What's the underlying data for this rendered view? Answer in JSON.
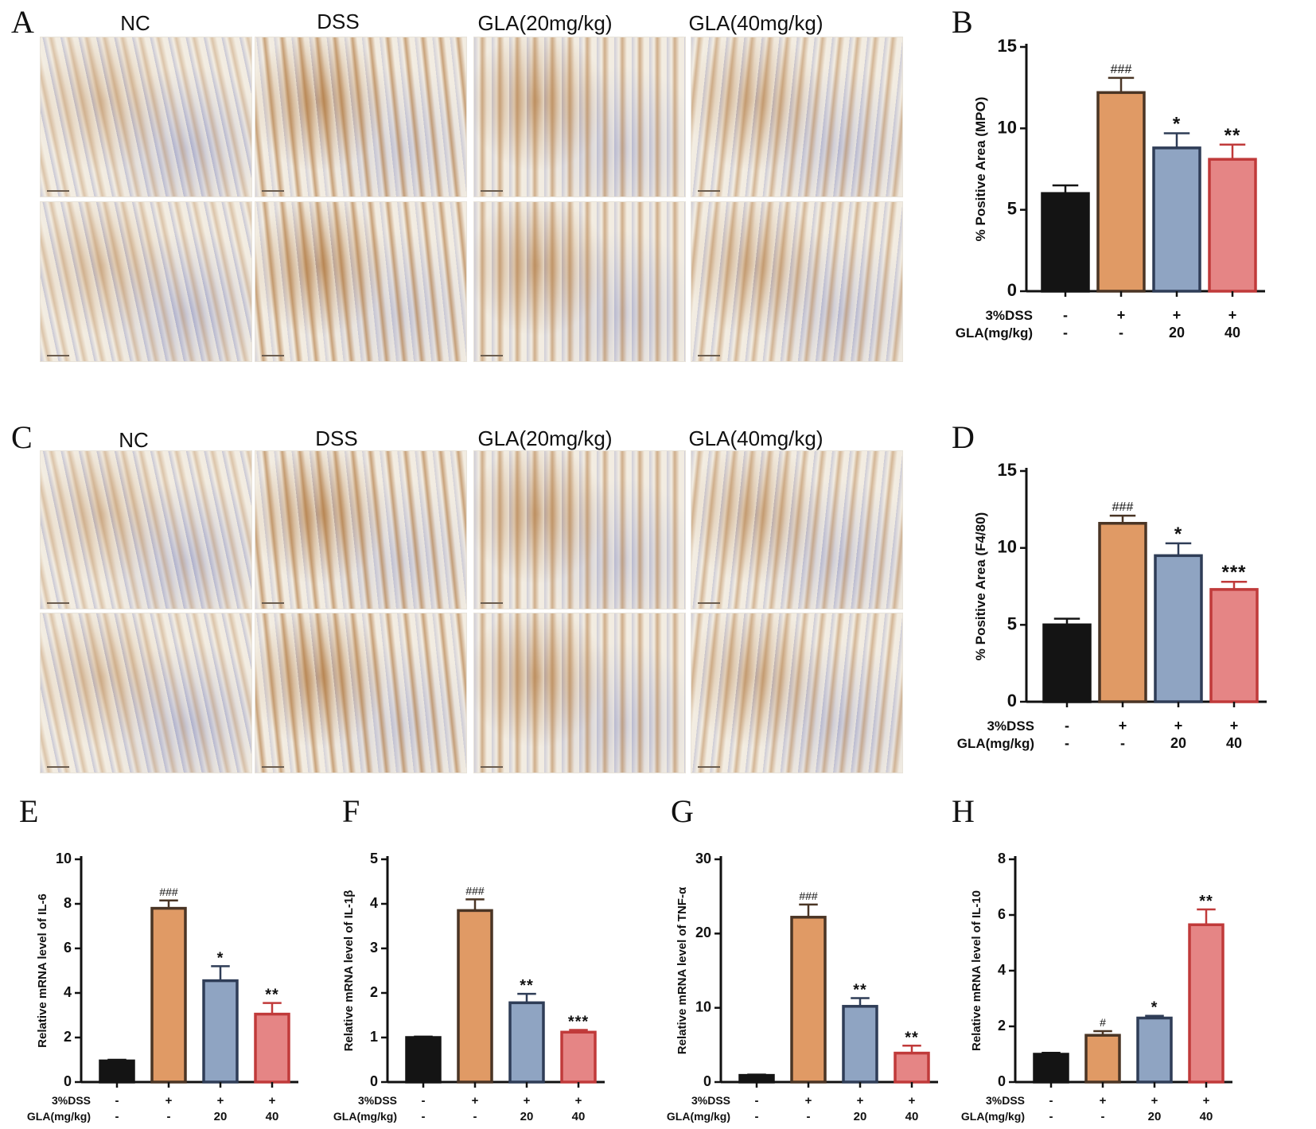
{
  "panels": {
    "A": {
      "letter": "A",
      "columns": [
        "NC",
        "DSS",
        "GLA(20mg/kg)",
        "GLA(40mg/kg)"
      ],
      "stain": "brown"
    },
    "C": {
      "letter": "C",
      "columns": [
        "NC",
        "DSS",
        "GLA(20mg/kg)",
        "GLA(40mg/kg)"
      ],
      "stain": "brown"
    }
  },
  "colors": {
    "NC": "#141414",
    "DSS": "#e09a65",
    "GLA20": "#8fa4c2",
    "GLA40": "#e58585"
  },
  "chart_data": [
    {
      "id": "B",
      "letter": "B",
      "type": "bar",
      "ylabel": "% Positive Area (MPO)",
      "ylim": [
        0,
        15
      ],
      "yticks": [
        0,
        5,
        10,
        15
      ],
      "values": [
        6.0,
        12.2,
        8.8,
        8.1
      ],
      "errors": [
        0.5,
        0.9,
        0.9,
        0.9
      ],
      "annotations": [
        "",
        "###",
        "*",
        "**"
      ],
      "rows": [
        {
          "label": "3%DSS",
          "values": [
            "-",
            "+",
            "+",
            "+"
          ]
        },
        {
          "label": "GLA(mg/kg)",
          "values": [
            "-",
            "-",
            "20",
            "40"
          ]
        }
      ]
    },
    {
      "id": "D",
      "letter": "D",
      "type": "bar",
      "ylabel": "% Positive Area (F4/80)",
      "ylim": [
        0,
        15
      ],
      "yticks": [
        0,
        5,
        10,
        15
      ],
      "values": [
        5.0,
        11.6,
        9.5,
        7.3
      ],
      "errors": [
        0.4,
        0.5,
        0.8,
        0.5
      ],
      "annotations": [
        "",
        "###",
        "*",
        "***"
      ],
      "rows": [
        {
          "label": "3%DSS",
          "values": [
            "-",
            "+",
            "+",
            "+"
          ]
        },
        {
          "label": "GLA(mg/kg)",
          "values": [
            "-",
            "-",
            "20",
            "40"
          ]
        }
      ]
    },
    {
      "id": "E",
      "letter": "E",
      "type": "bar",
      "ylabel": "Relative mRNA level of IL-6",
      "ylim": [
        0,
        10
      ],
      "yticks": [
        0,
        2,
        4,
        6,
        8,
        10
      ],
      "values": [
        0.95,
        7.8,
        4.55,
        3.05
      ],
      "errors": [
        0.05,
        0.35,
        0.65,
        0.5
      ],
      "annotations": [
        "",
        "###",
        "*",
        "**"
      ],
      "rows": [
        {
          "label": "3%DSS",
          "values": [
            "-",
            "+",
            "+",
            "+"
          ]
        },
        {
          "label": "GLA(mg/kg)",
          "values": [
            "-",
            "-",
            "20",
            "40"
          ]
        }
      ]
    },
    {
      "id": "F",
      "letter": "F",
      "type": "bar",
      "ylabel": "Relative mRNA level of IL-1β",
      "ylim": [
        0,
        5
      ],
      "yticks": [
        0,
        1,
        2,
        3,
        4,
        5
      ],
      "values": [
        1.0,
        3.85,
        1.78,
        1.12
      ],
      "errors": [
        0.02,
        0.25,
        0.2,
        0.05
      ],
      "annotations": [
        "",
        "###",
        "**",
        "***"
      ],
      "rows": [
        {
          "label": "3%DSS",
          "values": [
            "-",
            "+",
            "+",
            "+"
          ]
        },
        {
          "label": "GLA(mg/kg)",
          "values": [
            "-",
            "-",
            "20",
            "40"
          ]
        }
      ]
    },
    {
      "id": "G",
      "letter": "G",
      "type": "bar",
      "ylabel": "Relative mRNA level of TNF-α",
      "ylim": [
        0,
        30
      ],
      "yticks": [
        0,
        10,
        20,
        30
      ],
      "values": [
        0.9,
        22.2,
        10.2,
        3.9
      ],
      "errors": [
        0.1,
        1.7,
        1.1,
        1.0
      ],
      "annotations": [
        "",
        "###",
        "**",
        "**"
      ],
      "rows": [
        {
          "label": "3%DSS",
          "values": [
            "-",
            "+",
            "+",
            "+"
          ]
        },
        {
          "label": "GLA(mg/kg)",
          "values": [
            "-",
            "-",
            "20",
            "40"
          ]
        }
      ]
    },
    {
      "id": "H",
      "letter": "H",
      "type": "bar",
      "ylabel": "Relative mRNA level of IL-10",
      "ylim": [
        0,
        8
      ],
      "yticks": [
        0,
        2,
        4,
        6,
        8
      ],
      "values": [
        1.0,
        1.68,
        2.3,
        5.65
      ],
      "errors": [
        0.05,
        0.15,
        0.08,
        0.55
      ],
      "annotations": [
        "",
        "#",
        "*",
        "**"
      ],
      "rows": [
        {
          "label": "3%DSS",
          "values": [
            "-",
            "+",
            "+",
            "+"
          ]
        },
        {
          "label": "GLA(mg/kg)",
          "values": [
            "-",
            "-",
            "20",
            "40"
          ]
        }
      ]
    }
  ]
}
